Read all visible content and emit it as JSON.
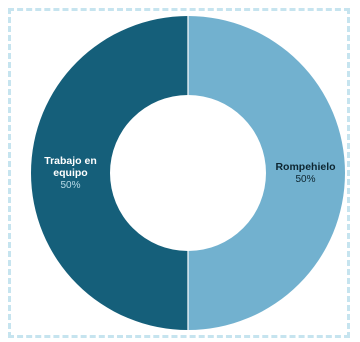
{
  "chart_data": {
    "type": "pie",
    "donut": true,
    "slices": [
      {
        "label_lines": [
          "Rompehielo"
        ],
        "percent_label": "50%",
        "value": 50,
        "color": "#72b1cf",
        "text_color": "#0d2530",
        "pct_color": "#0d2530"
      },
      {
        "label_lines": [
          "Trabajo en",
          "equipo"
        ],
        "percent_label": "50%",
        "value": 50,
        "color": "#155f7a",
        "text_color": "#ffffff",
        "pct_color": "#b9dbe8"
      }
    ],
    "legend": "none"
  },
  "colors": {
    "frame_border": "#c6e4ef",
    "slice_separator": "#ffffff",
    "background": "#ffffff"
  }
}
